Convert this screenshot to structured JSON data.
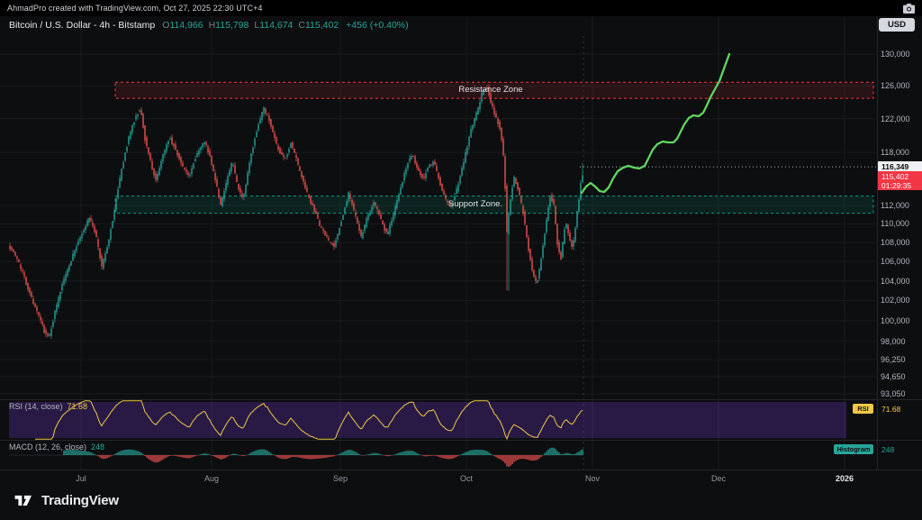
{
  "top_bar": {
    "attribution": "AhmadPro created with TradingView.com, Oct 27, 2025 22:30 UTC+4"
  },
  "header": {
    "title": "Bitcoin / U.S. Dollar - 4h - Bitstamp",
    "currency_button": "USD",
    "ohlc": {
      "open_label": "O",
      "open": "114,966",
      "high_label": "H",
      "high": "115,798",
      "low_label": "L",
      "low": "114,674",
      "close_label": "C",
      "close": "115,402",
      "change": "+456 (+0.40%)"
    }
  },
  "chart_data": {
    "type": "candlestick",
    "title": "Bitcoin / U.S. Dollar, 4h, Bitstamp",
    "scale": "log",
    "ylim": [
      93050,
      130000
    ],
    "grid": true,
    "price_path": [
      [
        10,
        107800
      ],
      [
        20,
        106300
      ],
      [
        30,
        103800
      ],
      [
        42,
        100800
      ],
      [
        50,
        99000
      ],
      [
        55,
        98300
      ],
      [
        62,
        100800
      ],
      [
        70,
        103600
      ],
      [
        80,
        106200
      ],
      [
        90,
        108600
      ],
      [
        100,
        110600
      ],
      [
        107,
        109000
      ],
      [
        114,
        105400
      ],
      [
        121,
        107800
      ],
      [
        128,
        111500
      ],
      [
        136,
        116000
      ],
      [
        144,
        119800
      ],
      [
        152,
        122400
      ],
      [
        157,
        123200
      ],
      [
        162,
        119600
      ],
      [
        168,
        117000
      ],
      [
        174,
        114700
      ],
      [
        181,
        117400
      ],
      [
        189,
        119800
      ],
      [
        196,
        118300
      ],
      [
        204,
        116400
      ],
      [
        211,
        115100
      ],
      [
        219,
        117700
      ],
      [
        227,
        119400
      ],
      [
        234,
        117600
      ],
      [
        240,
        114900
      ],
      [
        246,
        112100
      ],
      [
        252,
        114400
      ],
      [
        259,
        117000
      ],
      [
        265,
        114100
      ],
      [
        271,
        112500
      ],
      [
        279,
        117300
      ],
      [
        287,
        121000
      ],
      [
        294,
        123300
      ],
      [
        301,
        121600
      ],
      [
        309,
        118600
      ],
      [
        317,
        117100
      ],
      [
        324,
        119000
      ],
      [
        332,
        116600
      ],
      [
        339,
        114100
      ],
      [
        348,
        111900
      ],
      [
        357,
        109600
      ],
      [
        365,
        108300
      ],
      [
        372,
        107500
      ],
      [
        380,
        110400
      ],
      [
        388,
        113300
      ],
      [
        395,
        111100
      ],
      [
        402,
        108600
      ],
      [
        409,
        110700
      ],
      [
        416,
        112500
      ],
      [
        424,
        110500
      ],
      [
        431,
        108700
      ],
      [
        439,
        111400
      ],
      [
        447,
        114400
      ],
      [
        454,
        116900
      ],
      [
        459,
        117800
      ],
      [
        465,
        116100
      ],
      [
        471,
        114900
      ],
      [
        477,
        116400
      ],
      [
        483,
        116900
      ],
      [
        489,
        114600
      ],
      [
        496,
        112600
      ],
      [
        502,
        111900
      ],
      [
        509,
        114000
      ],
      [
        517,
        117400
      ],
      [
        524,
        120700
      ],
      [
        531,
        122900
      ],
      [
        537,
        125400
      ],
      [
        542,
        125800
      ],
      [
        547,
        123600
      ],
      [
        552,
        122100
      ],
      [
        557,
        120600
      ],
      [
        561,
        116500
      ],
      [
        564,
        109000
      ],
      [
        568,
        112800
      ],
      [
        572,
        115200
      ],
      [
        577,
        113600
      ],
      [
        582,
        111200
      ],
      [
        587,
        107800
      ],
      [
        592,
        105200
      ],
      [
        597,
        103600
      ],
      [
        602,
        106300
      ],
      [
        607,
        109800
      ],
      [
        612,
        113100
      ],
      [
        616,
        112100
      ],
      [
        620,
        107900
      ],
      [
        624,
        106300
      ],
      [
        629,
        110300
      ],
      [
        633,
        108600
      ],
      [
        637,
        107300
      ],
      [
        641,
        110400
      ],
      [
        645,
        113600
      ],
      [
        648,
        116349
      ]
    ],
    "zones": [
      {
        "label": "Resistance Zone",
        "price_min": 124450,
        "price_max": 126450,
        "edge_color": "#f23645",
        "fill": "rgba(242,54,69,0.12)",
        "label_x": 545
      },
      {
        "label": "Support Zone.",
        "price_min": 111150,
        "price_max": 113050,
        "edge_color": "#089981",
        "fill": "rgba(8,153,129,0.14)",
        "label_x": 528
      }
    ],
    "projection": {
      "description": "hand-drawn bullish projection to 130,000",
      "color": "#5fd75f",
      "points": [
        [
          646,
          214
        ],
        [
          651,
          207
        ],
        [
          656,
          203
        ],
        [
          661,
          207
        ],
        [
          666,
          212
        ],
        [
          671,
          213
        ],
        [
          676,
          208
        ],
        [
          681,
          198
        ],
        [
          686,
          190
        ],
        [
          692,
          186
        ],
        [
          698,
          184
        ],
        [
          704,
          186
        ],
        [
          710,
          187
        ],
        [
          716,
          184
        ],
        [
          720,
          176
        ],
        [
          725,
          166
        ],
        [
          730,
          160
        ],
        [
          736,
          157
        ],
        [
          742,
          158
        ],
        [
          748,
          158
        ],
        [
          752,
          154
        ],
        [
          756,
          146
        ],
        [
          760,
          138
        ],
        [
          765,
          131
        ],
        [
          770,
          128
        ],
        [
          776,
          129
        ],
        [
          781,
          125
        ],
        [
          785,
          117
        ],
        [
          789,
          108
        ],
        [
          794,
          99
        ],
        [
          799,
          90
        ],
        [
          803,
          79
        ],
        [
          807,
          68
        ],
        [
          810,
          60
        ]
      ]
    },
    "last_price": {
      "level_label": "116,349",
      "price_label": "115,402",
      "countdown": "01:29:35",
      "level_value": 116349,
      "price_value": 115402
    },
    "y_axis": {
      "labels": [
        {
          "text": "130,000",
          "price": 130000
        },
        {
          "text": "126,000",
          "price": 126000
        },
        {
          "text": "122,000",
          "price": 122000
        },
        {
          "text": "118,000",
          "price": 118000
        },
        {
          "text": "112,000",
          "price": 112000
        },
        {
          "text": "110,000",
          "price": 110000
        },
        {
          "text": "108,000",
          "price": 108000
        },
        {
          "text": "106,000",
          "price": 106000
        },
        {
          "text": "104,000",
          "price": 104000
        },
        {
          "text": "102,000",
          "price": 102000
        },
        {
          "text": "100,000",
          "price": 100000
        },
        {
          "text": "98,000",
          "price": 98000
        },
        {
          "text": "96,250",
          "price": 96250
        },
        {
          "text": "94,650",
          "price": 94650
        },
        {
          "text": "93,050",
          "price": 93050
        }
      ]
    },
    "x_axis": {
      "labels": [
        {
          "text": "Jul",
          "x": 90
        },
        {
          "text": "Aug",
          "x": 235
        },
        {
          "text": "Sep",
          "x": 378
        },
        {
          "text": "Oct",
          "x": 518
        },
        {
          "text": "Nov",
          "x": 658
        },
        {
          "text": "Dec",
          "x": 798
        },
        {
          "text": "2026",
          "x": 938,
          "strong": true
        }
      ]
    },
    "colors": {
      "up": "#26a69a",
      "down": "#ef5350",
      "grid": "#191a1d",
      "axis_text": "#b2b5be",
      "rsi_line": "#f0c948",
      "rsi_band": "rgba(106,57,192,0.30)",
      "projection": "#5fd75f",
      "label_red": "#f23645",
      "separator": "#26272b"
    }
  },
  "indicators": {
    "rsi": {
      "title": "RSI (14, close)",
      "value": "71.68",
      "badge": "RSI"
    },
    "macd": {
      "title": "MACD (12, 26, close)",
      "value": "248",
      "badge": "Histogram"
    }
  },
  "footer": {
    "brand": "TradingView"
  }
}
